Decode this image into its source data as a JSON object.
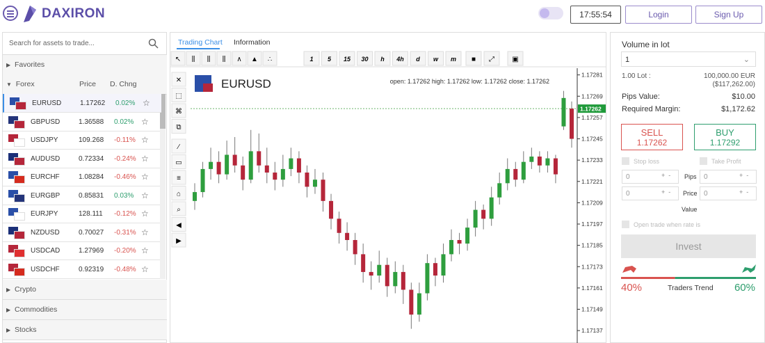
{
  "header": {
    "logo": "DAXIRON",
    "time": "17:55:54",
    "login": "Login",
    "signup": "Sign Up"
  },
  "sidebar": {
    "search": "Search for assets to trade...",
    "favorites": "Favorites",
    "forex": {
      "label": "Forex",
      "col_price": "Price",
      "col_change": "D. Chng",
      "rows": [
        [
          "EURUSD",
          "1.17262",
          "0.02%"
        ],
        [
          "GBPUSD",
          "1.36588",
          "0.02%"
        ],
        [
          "USDJPY",
          "109.268",
          "-0.11%"
        ],
        [
          "AUDUSD",
          "0.72334",
          "-0.24%"
        ],
        [
          "EURCHF",
          "1.08284",
          "-0.46%"
        ],
        [
          "EURGBP",
          "0.85831",
          "0.03%"
        ],
        [
          "EURJPY",
          "128.111",
          "-0.12%"
        ],
        [
          "NZDUSD",
          "0.70027",
          "-0.31%"
        ],
        [
          "USDCAD",
          "1.27969",
          "-0.20%"
        ],
        [
          "USDCHF",
          "0.92319",
          "-0.48%"
        ]
      ]
    },
    "more": [
      "Crypto",
      "Commodities",
      "Stocks"
    ]
  },
  "chart": {
    "type": "candlestick",
    "tabs": [
      "Trading Chart",
      "Information"
    ],
    "intervals": [
      "1",
      "5",
      "15",
      "30",
      "h",
      "4h",
      "d",
      "w",
      "m"
    ],
    "symbol": "EURUSD",
    "ohlc": "open: 1.17262 high: 1.17262 low: 1.17262 close: 1.17262",
    "ylim": [
      1.1713,
      1.17284
    ],
    "yticks": [
      1.17281,
      1.17269,
      1.17257,
      1.17245,
      1.17233,
      1.17221,
      1.17209,
      1.17197,
      1.17185,
      1.17173,
      1.17161,
      1.17149,
      1.17137
    ],
    "current_price": 1.17262,
    "up_color": "#2e9e3e",
    "down_color": "#b5263a",
    "candles": [
      [
        1.1721,
        1.1722,
        1.17205,
        1.17215
      ],
      [
        1.17215,
        1.17232,
        1.17212,
        1.17228
      ],
      [
        1.17228,
        1.1724,
        1.17222,
        1.17232
      ],
      [
        1.17232,
        1.17238,
        1.1722,
        1.17225
      ],
      [
        1.17225,
        1.17244,
        1.17222,
        1.17236
      ],
      [
        1.17236,
        1.17246,
        1.17226,
        1.1723
      ],
      [
        1.1723,
        1.17235,
        1.17216,
        1.17222
      ],
      [
        1.17222,
        1.1725,
        1.1722,
        1.17238
      ],
      [
        1.17238,
        1.17248,
        1.17226,
        1.1723
      ],
      [
        1.1723,
        1.1724,
        1.1722,
        1.17226
      ],
      [
        1.17226,
        1.17232,
        1.17216,
        1.17222
      ],
      [
        1.17222,
        1.17236,
        1.17218,
        1.17228
      ],
      [
        1.17228,
        1.1724,
        1.17224,
        1.17234
      ],
      [
        1.17234,
        1.17238,
        1.1722,
        1.17226
      ],
      [
        1.17226,
        1.1723,
        1.17212,
        1.17218
      ],
      [
        1.17218,
        1.17228,
        1.17214,
        1.17222
      ],
      [
        1.17222,
        1.17226,
        1.17204,
        1.1721
      ],
      [
        1.1721,
        1.17214,
        1.17194,
        1.172
      ],
      [
        1.172,
        1.17204,
        1.17186,
        1.17192
      ],
      [
        1.17192,
        1.17198,
        1.17182,
        1.17188
      ],
      [
        1.17188,
        1.17192,
        1.17174,
        1.1718
      ],
      [
        1.1718,
        1.17186,
        1.17164,
        1.1717
      ],
      [
        1.1717,
        1.17176,
        1.1716,
        1.17168
      ],
      [
        1.17168,
        1.17182,
        1.17164,
        1.17174
      ],
      [
        1.17174,
        1.17178,
        1.17156,
        1.17162
      ],
      [
        1.17162,
        1.17176,
        1.17158,
        1.1717
      ],
      [
        1.1717,
        1.17174,
        1.17152,
        1.1716
      ],
      [
        1.1716,
        1.17164,
        1.17138,
        1.17146
      ],
      [
        1.17146,
        1.17164,
        1.17142,
        1.17158
      ],
      [
        1.17158,
        1.1718,
        1.17154,
        1.17175
      ],
      [
        1.17175,
        1.17178,
        1.17162,
        1.17168
      ],
      [
        1.17168,
        1.17186,
        1.17164,
        1.1718
      ],
      [
        1.1718,
        1.17194,
        1.17176,
        1.17188
      ],
      [
        1.17188,
        1.17192,
        1.1718,
        1.17186
      ],
      [
        1.17186,
        1.172,
        1.17182,
        1.17195
      ],
      [
        1.17195,
        1.1721,
        1.1719,
        1.17205
      ],
      [
        1.17205,
        1.17208,
        1.17194,
        1.172
      ],
      [
        1.172,
        1.17218,
        1.17196,
        1.17212
      ],
      [
        1.17212,
        1.17226,
        1.17208,
        1.1722
      ],
      [
        1.1722,
        1.17234,
        1.17216,
        1.17228
      ],
      [
        1.17228,
        1.17232,
        1.17218,
        1.17222
      ],
      [
        1.17222,
        1.17238,
        1.1722,
        1.17232
      ],
      [
        1.17232,
        1.1724,
        1.17228,
        1.17235
      ],
      [
        1.17235,
        1.17238,
        1.17226,
        1.1723
      ],
      [
        1.1723,
        1.17238,
        1.17226,
        1.17234
      ],
      [
        1.17234,
        1.17236,
        1.1722,
        1.17225
      ],
      [
        1.17252,
        1.17272,
        1.1725,
        1.17268
      ],
      [
        1.17262,
        1.17266,
        1.1724,
        1.17245
      ]
    ]
  },
  "trade": {
    "volume_label": "Volume in lot",
    "volume": "1",
    "lot_label": "1.00 Lot :",
    "lot_value": "100,000.00 EUR",
    "lot_value_usd": "($117,262.00)",
    "pips_label": "Pips Value:",
    "pips_value": "$10.00",
    "margin_label": "Required Margin:",
    "margin": "$1,172.62",
    "sell": {
      "label": "SELL",
      "price": "1.17262"
    },
    "buy": {
      "label": "BUY",
      "price": "1.17292"
    },
    "stop_loss": "Stop loss",
    "take_profit": "Take Profit",
    "pips": "Pips",
    "price": "Price",
    "value": "Value",
    "fields": [
      "0",
      "0",
      "0",
      "0"
    ],
    "open_when": "Open trade when rate is",
    "invest": "Invest",
    "trend": {
      "label": "Traders Trend",
      "values": [
        40,
        60
      ],
      "value_labels": [
        "40%",
        "60%"
      ],
      "colors": [
        "#d9534f",
        "#2e9e6e"
      ]
    }
  }
}
